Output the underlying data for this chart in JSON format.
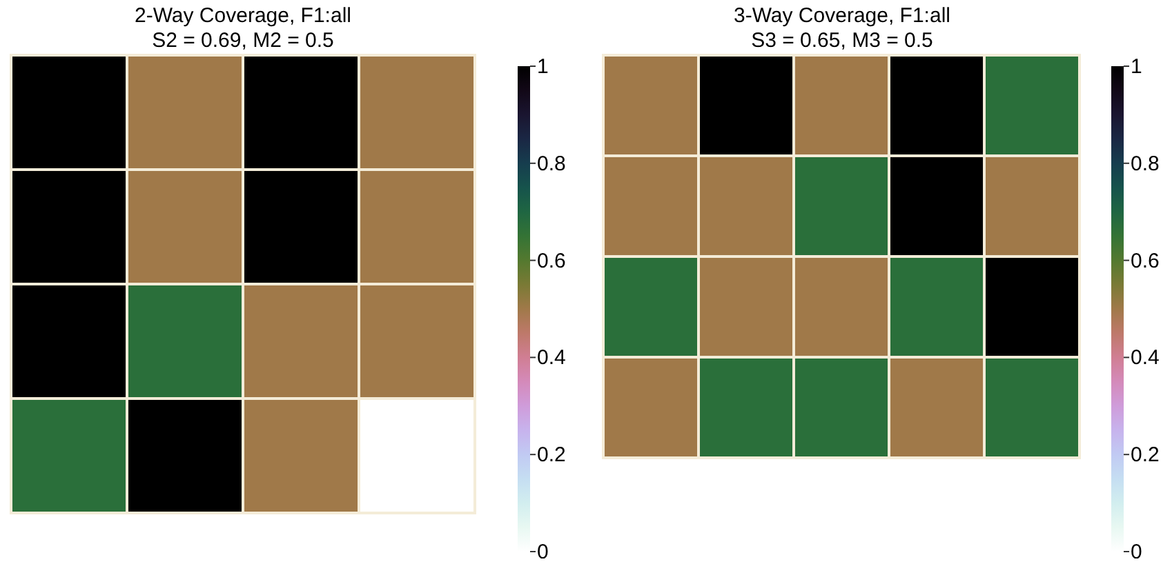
{
  "chart_data": [
    {
      "type": "heatmap",
      "title": "2-Way Coverage, F1:all",
      "subtitle": "S2 = 0.69, M2 = 0.5",
      "categories": [
        null,
        null,
        null,
        null
      ],
      "y_categories": [
        null,
        null,
        null,
        null
      ],
      "cells": [
        [
          1,
          0.5,
          1,
          0.5
        ],
        [
          1,
          0.5,
          1,
          0.5
        ],
        [
          1,
          0.67,
          0.5,
          0.5
        ],
        [
          0.67,
          1,
          0.5,
          0
        ]
      ],
      "clim": [
        0,
        1
      ],
      "cticks": [
        0,
        0.2,
        0.4,
        0.6,
        0.8,
        1
      ]
    },
    {
      "type": "heatmap",
      "title": "3-Way Coverage, F1:all",
      "subtitle": "S3 = 0.65, M3 = 0.5",
      "categories": [
        null,
        null,
        null,
        null,
        null
      ],
      "y_categories": [
        null,
        null,
        null,
        null
      ],
      "cells": [
        [
          0.5,
          1,
          0.5,
          1,
          0.67
        ],
        [
          0.5,
          0.5,
          0.67,
          1,
          0.5
        ],
        [
          0.67,
          0.5,
          0.5,
          0.67,
          1
        ],
        [
          0.5,
          0.67,
          0.67,
          0.5,
          0.67
        ]
      ],
      "clim": [
        0,
        1
      ],
      "cticks": [
        0,
        0.2,
        0.4,
        0.6,
        0.8,
        1
      ]
    }
  ]
}
